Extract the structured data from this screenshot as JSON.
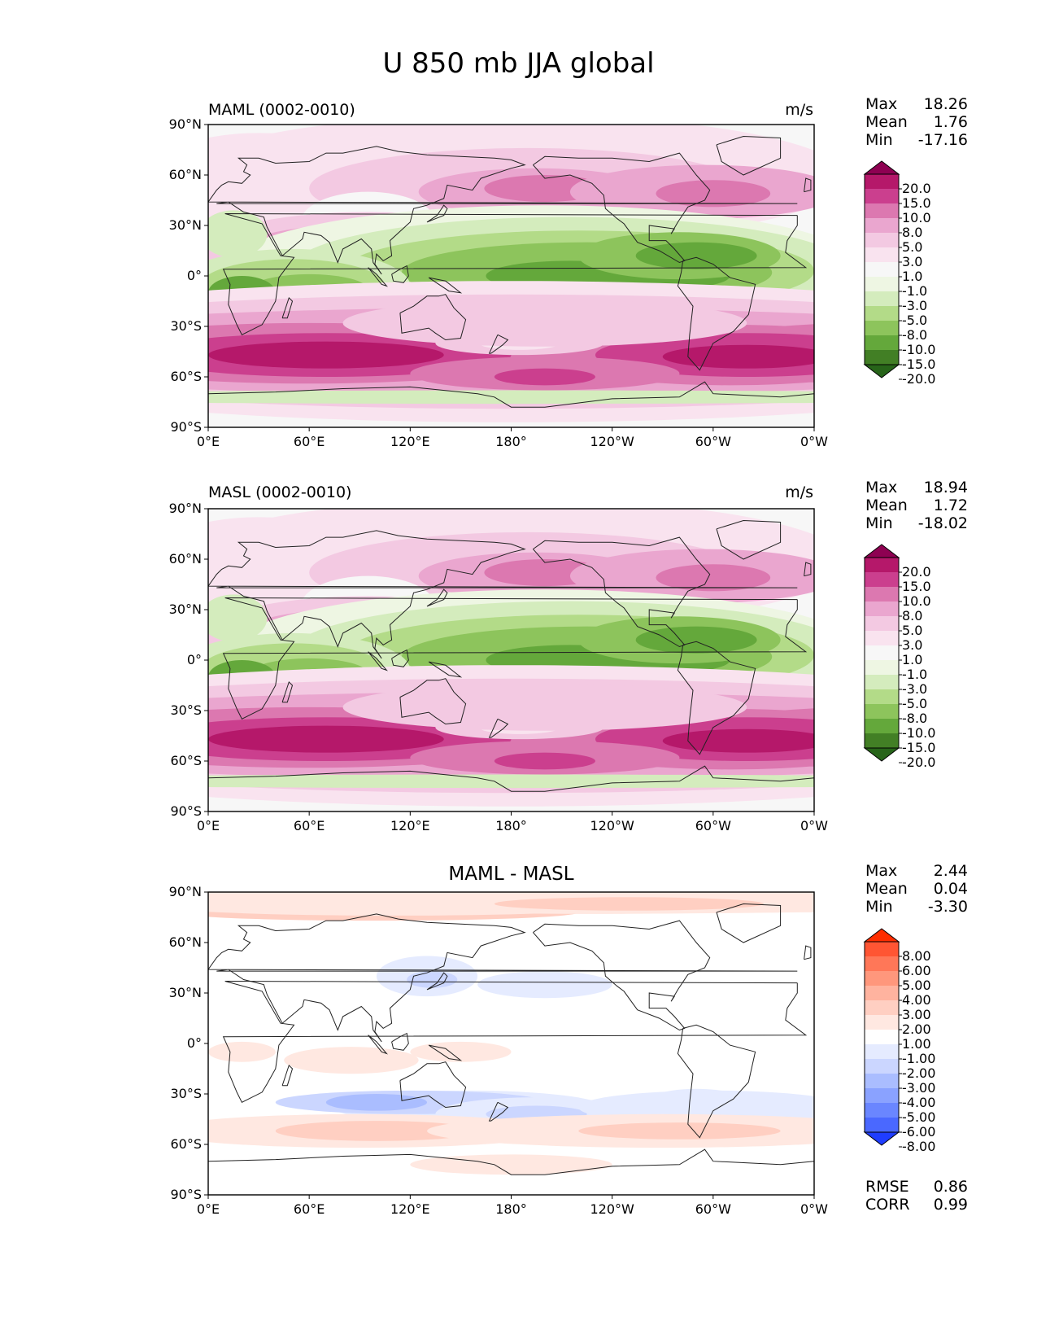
{
  "figure": {
    "title": "U 850 mb JJA global"
  },
  "axes": {
    "lat_ticks": [
      "90°N",
      "60°N",
      "30°N",
      "0°",
      "30°S",
      "60°S",
      "90°S"
    ],
    "lon_ticks": [
      "0°E",
      "60°E",
      "120°E",
      "180°",
      "120°W",
      "60°W",
      "0°W"
    ]
  },
  "panels": [
    {
      "title": "MAML (0002-0010)",
      "units": "m/s",
      "stats": [
        {
          "label": "Max",
          "value": "18.26"
        },
        {
          "label": "Mean",
          "value": "1.76"
        },
        {
          "label": "Min",
          "value": "-17.16"
        }
      ],
      "colorbar": {
        "labels": [
          "20.0",
          "15.0",
          "10.0",
          "8.0",
          "5.0",
          "3.0",
          "1.0",
          "-1.0",
          "-3.0",
          "-5.0",
          "-8.0",
          "-10.0",
          "-15.0",
          "-20.0"
        ],
        "colors": [
          "#8e0152",
          "#b5186a",
          "#cb3f8e",
          "#dc78b0",
          "#eaa6cf",
          "#f3c9e2",
          "#f9e3ef",
          "#f7f7f7",
          "#eef6e3",
          "#d4ecbd",
          "#b3db88",
          "#8dc45c",
          "#64a83b",
          "#427f25",
          "#276419"
        ]
      }
    },
    {
      "title": "MASL (0002-0010)",
      "units": "m/s",
      "stats": [
        {
          "label": "Max",
          "value": "18.94"
        },
        {
          "label": "Mean",
          "value": "1.72"
        },
        {
          "label": "Min",
          "value": "-18.02"
        }
      ],
      "colorbar": {
        "labels": [
          "20.0",
          "15.0",
          "10.0",
          "8.0",
          "5.0",
          "3.0",
          "1.0",
          "-1.0",
          "-3.0",
          "-5.0",
          "-8.0",
          "-10.0",
          "-15.0",
          "-20.0"
        ],
        "colors": [
          "#8e0152",
          "#b5186a",
          "#cb3f8e",
          "#dc78b0",
          "#eaa6cf",
          "#f3c9e2",
          "#f9e3ef",
          "#f7f7f7",
          "#eef6e3",
          "#d4ecbd",
          "#b3db88",
          "#8dc45c",
          "#64a83b",
          "#427f25",
          "#276419"
        ]
      }
    },
    {
      "title": "MAML - MASL",
      "units": "",
      "stats": [
        {
          "label": "Max",
          "value": "2.44"
        },
        {
          "label": "Mean",
          "value": "0.04"
        },
        {
          "label": "Min",
          "value": "-3.30"
        }
      ],
      "extra_stats": [
        {
          "label": "RMSE",
          "value": "0.86"
        },
        {
          "label": "CORR",
          "value": "0.99"
        }
      ],
      "colorbar": {
        "labels": [
          "8.00",
          "6.00",
          "5.00",
          "4.00",
          "3.00",
          "2.00",
          "1.00",
          "-1.00",
          "-2.00",
          "-3.00",
          "-4.00",
          "-5.00",
          "-6.00",
          "-8.00"
        ],
        "colors": [
          "#ff2d00",
          "#ff5533",
          "#ff7758",
          "#ff977c",
          "#ffb39f",
          "#ffcfc2",
          "#ffe8e1",
          "#ffffff",
          "#e5ebff",
          "#cbd6ff",
          "#aabdff",
          "#8aa2ff",
          "#6a86ff",
          "#4a68ff",
          "#1f3dff"
        ]
      }
    }
  ]
}
